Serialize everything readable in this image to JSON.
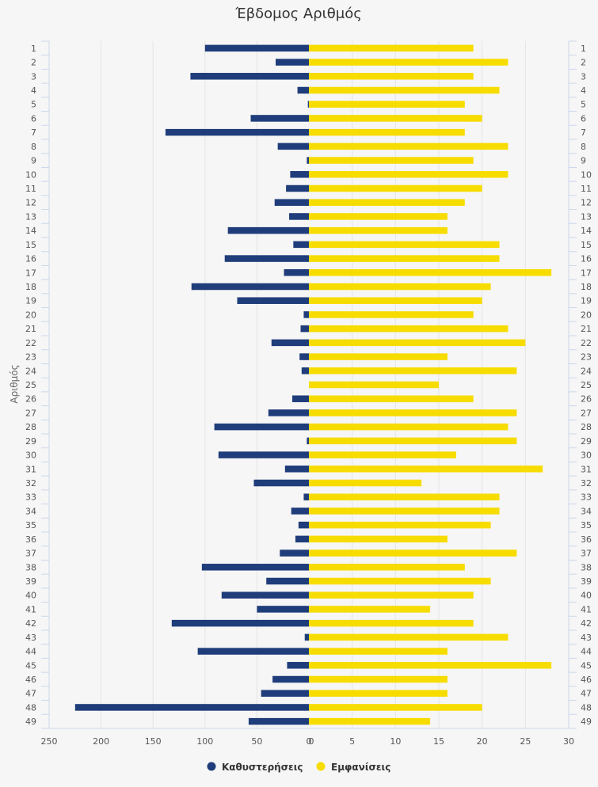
{
  "chart_data": {
    "type": "bar",
    "orientation": "horizontal",
    "title": "Έβδομος Αριθμός",
    "ylabel": "Αριθμός",
    "categories": [
      "1",
      "2",
      "3",
      "4",
      "5",
      "6",
      "7",
      "8",
      "9",
      "10",
      "11",
      "12",
      "13",
      "14",
      "15",
      "16",
      "17",
      "18",
      "19",
      "20",
      "21",
      "22",
      "23",
      "24",
      "25",
      "26",
      "27",
      "28",
      "29",
      "30",
      "31",
      "32",
      "33",
      "34",
      "35",
      "36",
      "37",
      "38",
      "39",
      "40",
      "41",
      "42",
      "43",
      "44",
      "45",
      "46",
      "47",
      "48",
      "49"
    ],
    "left_axis": {
      "ticks": [
        250,
        200,
        150,
        100,
        50,
        0
      ],
      "range": [
        250,
        0
      ]
    },
    "right_axis": {
      "ticks": [
        0,
        5,
        10,
        15,
        20,
        25,
        30
      ],
      "range": [
        0,
        30
      ]
    },
    "grid": true,
    "legend_position": "bottom",
    "series": [
      {
        "name": "Καθυστερήσεις",
        "color": "#1f3d7a",
        "values": [
          100,
          32,
          114,
          11,
          1,
          56,
          138,
          30,
          2,
          18,
          22,
          33,
          19,
          78,
          15,
          81,
          24,
          113,
          69,
          5,
          8,
          36,
          9,
          7,
          0,
          16,
          39,
          91,
          2,
          87,
          23,
          53,
          5,
          17,
          10,
          13,
          28,
          103,
          41,
          84,
          50,
          132,
          4,
          107,
          21,
          35,
          46,
          225,
          58
        ]
      },
      {
        "name": "Εμφανίσεις",
        "color": "#f7dc00",
        "values": [
          19,
          23,
          19,
          22,
          18,
          20,
          18,
          23,
          19,
          23,
          20,
          18,
          16,
          16,
          22,
          22,
          28,
          21,
          20,
          19,
          23,
          25,
          16,
          24,
          15,
          19,
          24,
          23,
          24,
          17,
          27,
          13,
          22,
          22,
          21,
          16,
          24,
          18,
          21,
          19,
          14,
          19,
          23,
          16,
          28,
          16,
          16,
          20,
          14
        ]
      }
    ]
  }
}
